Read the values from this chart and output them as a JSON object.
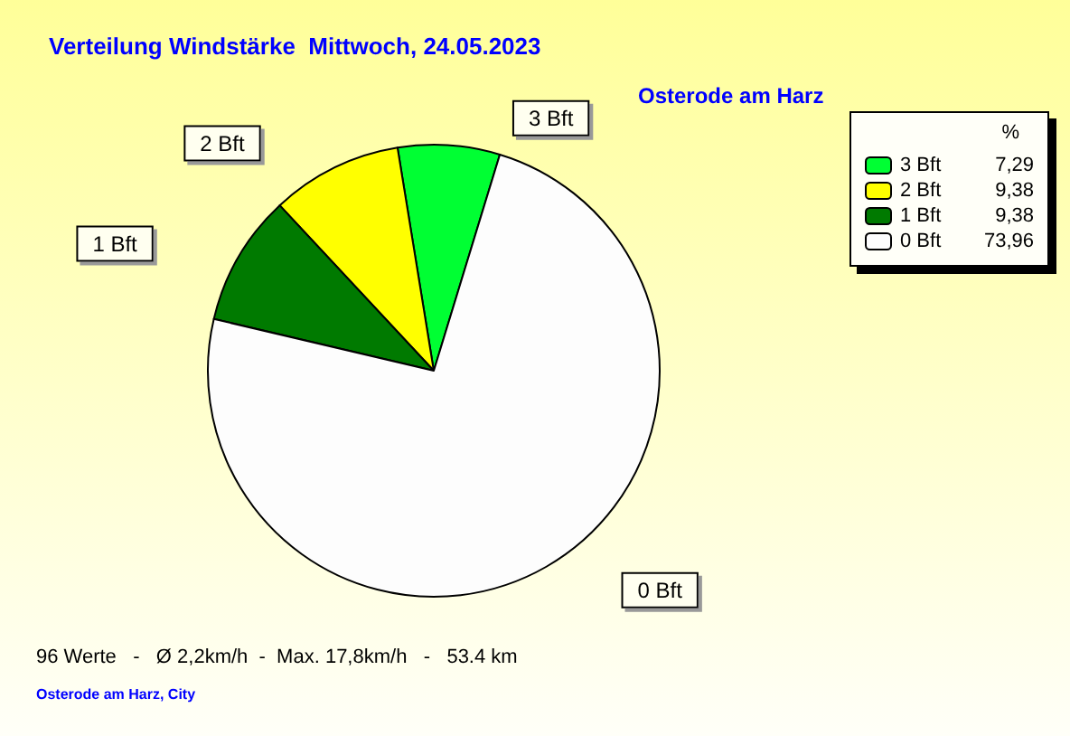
{
  "chart_data": {
    "type": "pie",
    "title": "Verteilung Windstärke  Mittwoch, 24.05.2023",
    "subtitle": "Osterode am Harz",
    "categories": [
      "3 Bft",
      "2 Bft",
      "1 Bft",
      "0 Bft"
    ],
    "values": [
      7.29,
      9.38,
      9.38,
      73.96
    ],
    "value_labels": [
      "7,29",
      "9,38",
      "9,38",
      "73,96"
    ],
    "colors": [
      "#00ff33",
      "#ffff00",
      "#007a00",
      "#fdfdfd"
    ],
    "legend": "top right",
    "legend_title": "%",
    "annotations": [
      "96 Werte   -   Ø 2,2km/h  -  Max. 17,8km/h   -   53.4 km",
      "Osterode am Harz, City"
    ]
  }
}
